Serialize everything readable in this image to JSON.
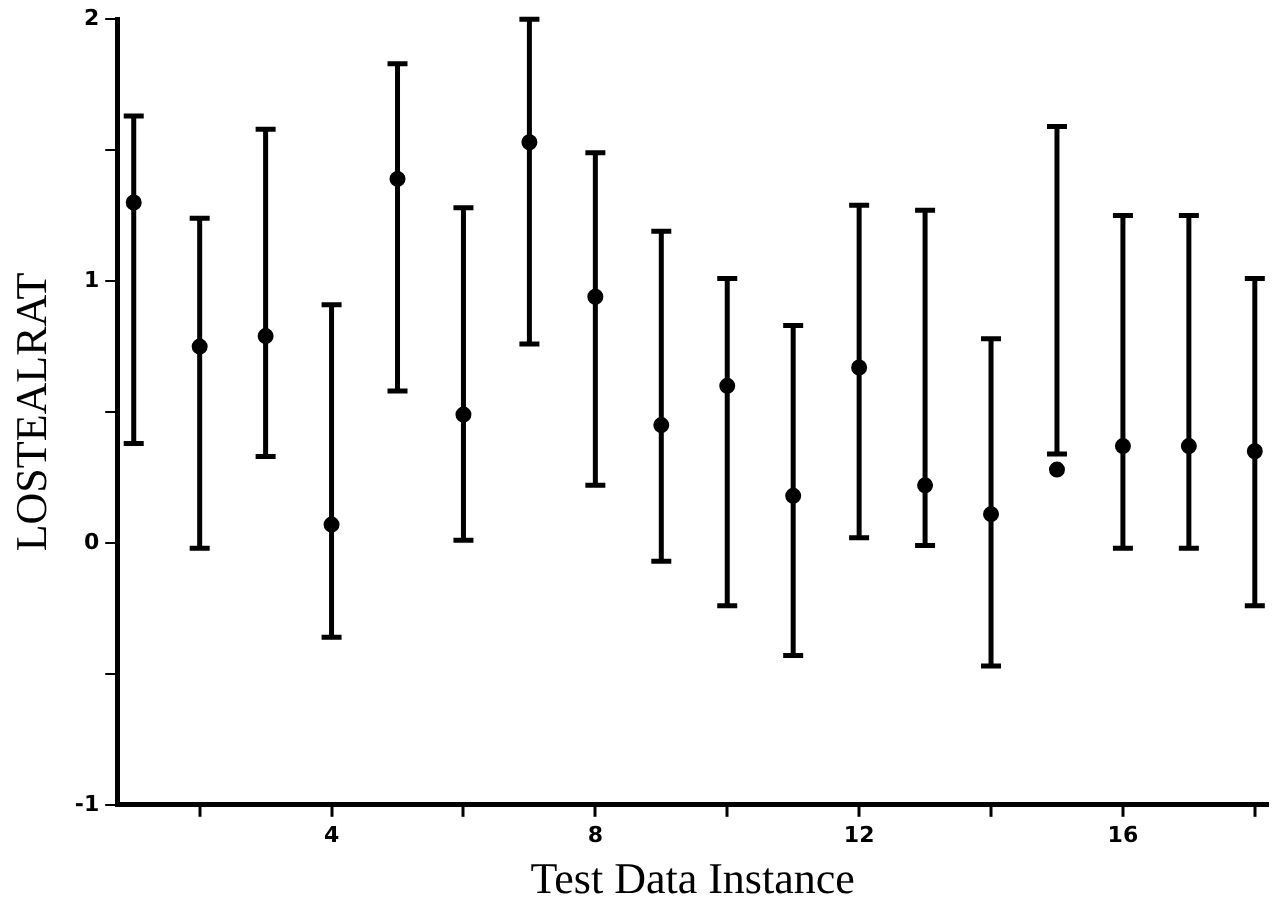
{
  "chart_data": {
    "type": "scatter",
    "xlabel": "Test Data Instance",
    "ylabel": "LOSTEALRAT",
    "x": [
      1,
      2,
      3,
      4,
      5,
      6,
      7,
      8,
      9,
      10,
      11,
      12,
      13,
      14,
      15,
      16,
      17,
      18
    ],
    "values": [
      1.3,
      0.75,
      0.79,
      0.07,
      1.39,
      0.49,
      1.53,
      0.94,
      0.45,
      0.6,
      0.18,
      0.67,
      0.22,
      0.11,
      0.28,
      0.37,
      0.37,
      0.35
    ],
    "errors": [
      [
        0.38,
        1.63
      ],
      [
        -0.02,
        1.24
      ],
      [
        0.33,
        1.58
      ],
      [
        -0.36,
        0.91
      ],
      [
        0.58,
        1.83
      ],
      [
        0.01,
        1.28
      ],
      [
        0.76,
        2.0
      ],
      [
        0.22,
        1.49
      ],
      [
        -0.07,
        1.19
      ],
      [
        -0.24,
        1.01
      ],
      [
        -0.43,
        0.83
      ],
      [
        0.02,
        1.29
      ],
      [
        -0.01,
        1.27
      ],
      [
        -0.47,
        0.78
      ],
      [
        0.34,
        1.59
      ],
      [
        -0.02,
        1.25
      ],
      [
        -0.02,
        1.25
      ],
      [
        -0.24,
        1.01
      ]
    ],
    "color": "#000000",
    "marker": "circle",
    "xlim": [
      0.75,
      18.2
    ],
    "xticks": [
      {
        "value": 2,
        "label": null
      },
      4,
      {
        "value": 6,
        "label": null
      },
      8,
      {
        "value": 10,
        "label": null
      },
      12,
      {
        "value": 14,
        "label": null
      },
      16,
      {
        "value": 18,
        "label": null
      }
    ],
    "ylim": [
      -1,
      2
    ],
    "yticks": [
      -1,
      {
        "value": -0.5,
        "label": null
      },
      0,
      {
        "value": 0.5,
        "label": null
      },
      1,
      {
        "value": 1.5,
        "label": null
      },
      2
    ],
    "grid": false
  }
}
